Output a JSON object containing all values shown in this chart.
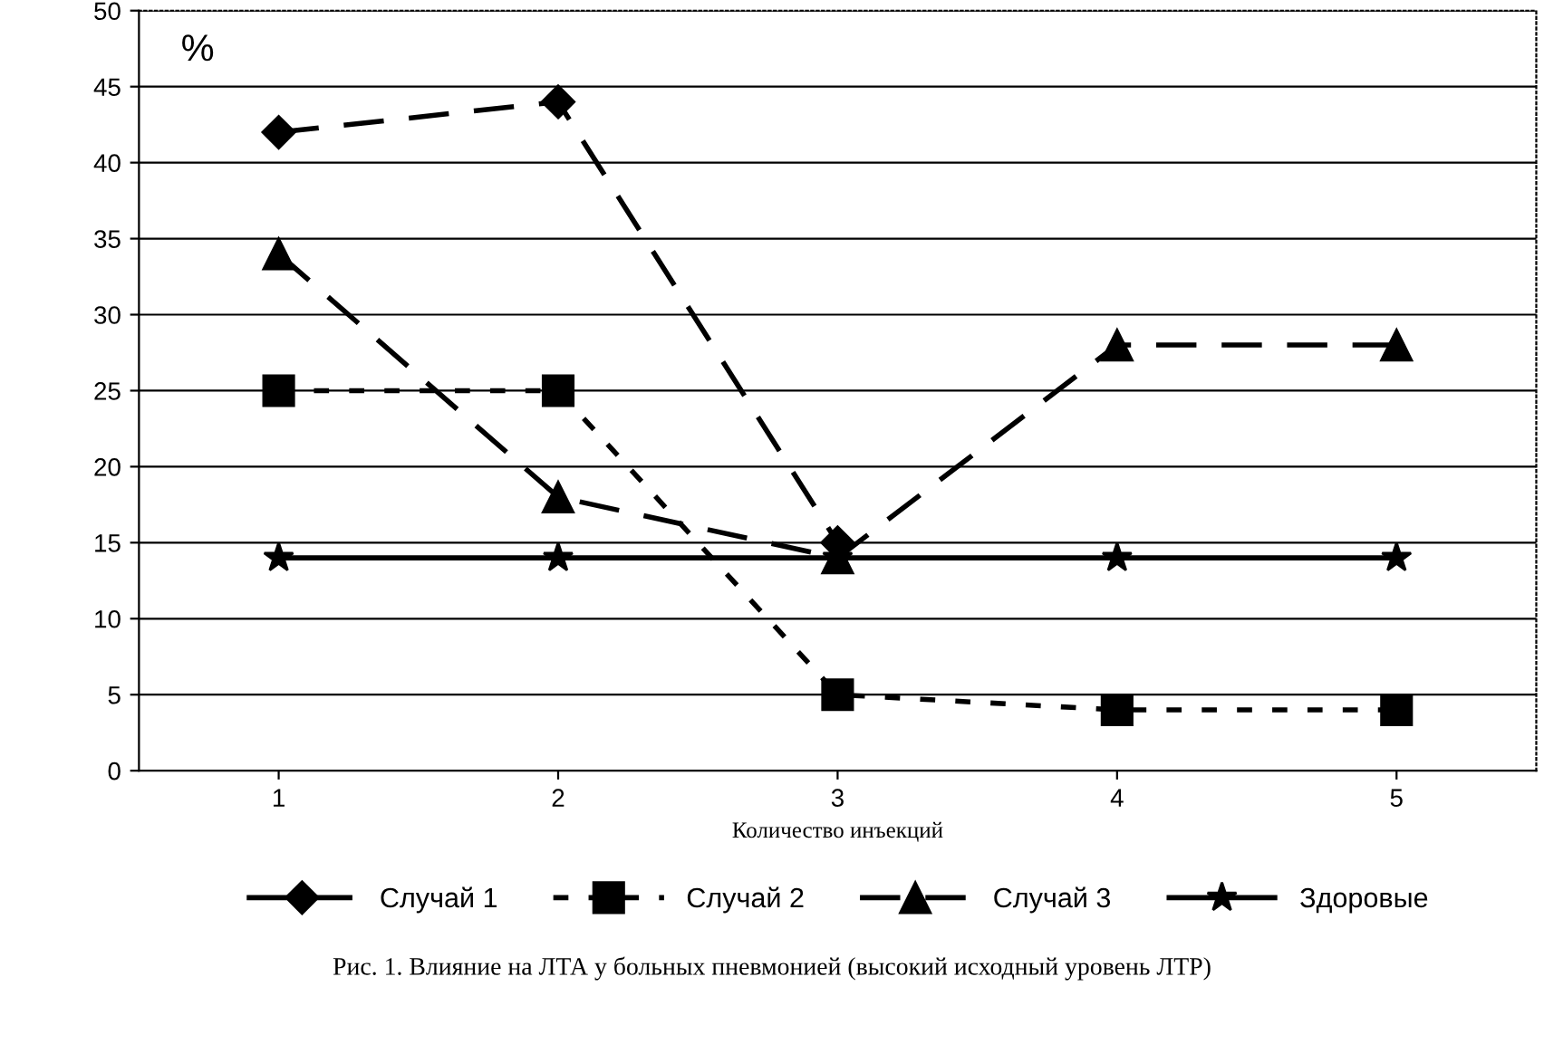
{
  "chart_data": {
    "type": "line",
    "categories": [
      "1",
      "2",
      "3",
      "4",
      "5"
    ],
    "xlabel": "Количество инъекций",
    "ylabel": "%",
    "ylim": [
      0,
      50
    ],
    "yticks": [
      0,
      5,
      10,
      15,
      20,
      25,
      30,
      35,
      40,
      45,
      50
    ],
    "grid": "y",
    "legend": "bottom",
    "series": [
      {
        "name": "Случай 1",
        "color": "#000000",
        "marker": "diamond",
        "line_style": "dashed",
        "values": [
          42,
          44,
          15,
          null,
          null
        ]
      },
      {
        "name": "Случай 2",
        "color": "#000000",
        "marker": "square",
        "line_style": "dotted",
        "values": [
          25,
          25,
          5,
          4,
          4
        ]
      },
      {
        "name": "Случай 3",
        "color": "#000000",
        "marker": "triangle",
        "line_style": "dashed",
        "values": [
          34,
          18,
          14,
          28,
          28
        ]
      },
      {
        "name": "Здоровые",
        "color": "#000000",
        "marker": "star",
        "line_style": "solid",
        "values": [
          14,
          14,
          14,
          14,
          14
        ]
      }
    ],
    "annotations": [
      "Рис. 1. Влияние на ЛТА у больных пневмонией (высокий исходный уровень ЛТР)"
    ]
  }
}
